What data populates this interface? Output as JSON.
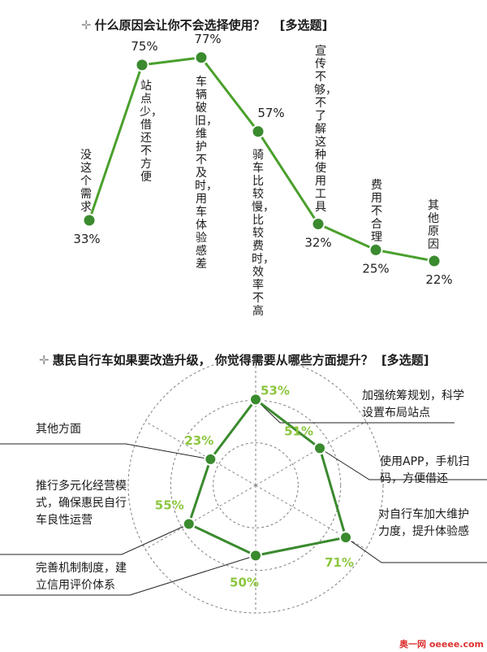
{
  "chart_data": [
    {
      "type": "line",
      "title": "什么原因会让你不会选择使用？",
      "title_tag": "[多选题]",
      "categories": [
        "没这个需求",
        "站点少，借还不方便",
        "车辆破旧，维护不及时，用车体验感差",
        "骑车比较慢，比较费时，效率不高",
        "宣传不够，不了解这种使用工具",
        "费用不合理",
        "其他原因"
      ],
      "values": [
        33,
        75,
        77,
        57,
        32,
        25,
        22
      ],
      "value_labels": [
        "33%",
        "75%",
        "77%",
        "57%",
        "32%",
        "25%",
        "22%"
      ],
      "line_color": "#4aa02c",
      "marker_color": "#3a8a2e",
      "grid": false,
      "legend": "none"
    },
    {
      "type": "radar",
      "title": "惠民自行车如果要改造升级， 你觉得需要从哪些方面提升？",
      "title_tag": "[多选题]",
      "categories": [
        "加强统筹规划，科学设置布局站点",
        "使用APP，手机扫码，方便借还",
        "对自行车加大维护力度，提升体验感",
        "完善机制制度，建立信用评价体系",
        "推行多元化经营模式，确保惠民自行车良性运营",
        "其他方面"
      ],
      "values": [
        53,
        51,
        71,
        50,
        55,
        23
      ],
      "value_labels": [
        "53%",
        "51%",
        "71%",
        "50%",
        "55%",
        "23%"
      ],
      "line_color": "#3a8a2e",
      "label_color": "#8cc63f",
      "grid": true,
      "legend": "none"
    }
  ],
  "watermark": "奥一网 oeeee.com"
}
